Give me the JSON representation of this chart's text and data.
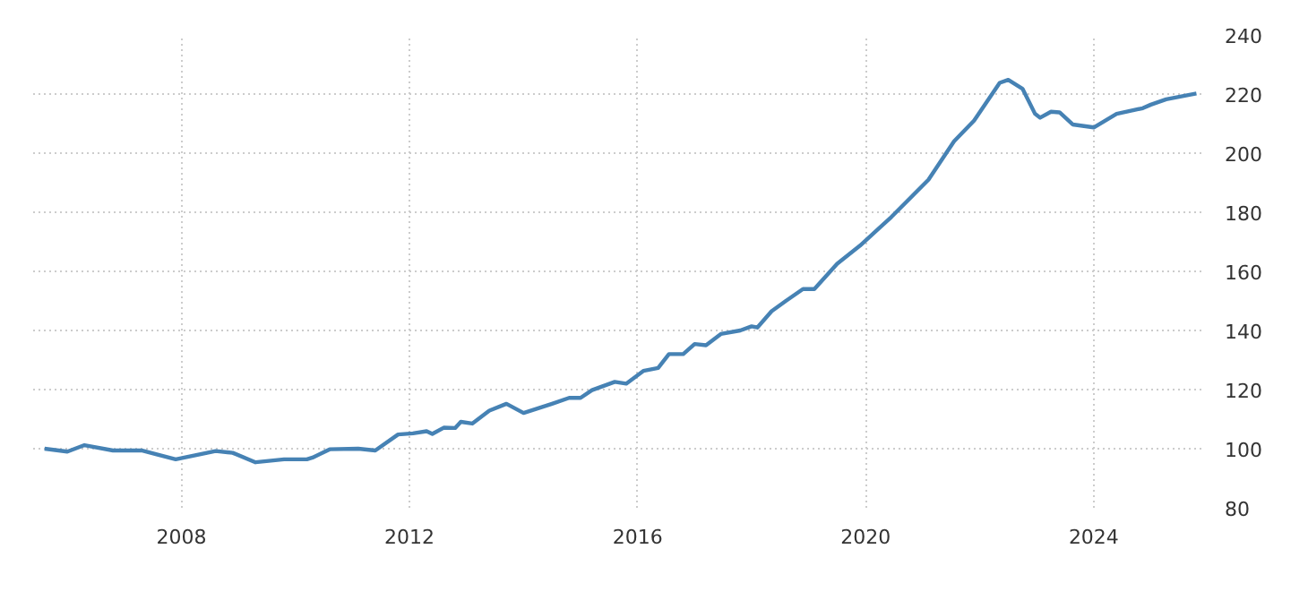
{
  "chart_data": {
    "type": "line",
    "x": [
      2005.6,
      2006.0,
      2006.3,
      2006.8,
      2007.3,
      2007.9,
      2008.6,
      2008.9,
      2009.3,
      2009.8,
      2010.2,
      2010.3,
      2010.6,
      2011.1,
      2011.4,
      2011.8,
      2012.06,
      2012.3,
      2012.4,
      2012.6,
      2012.8,
      2012.9,
      2013.1,
      2013.4,
      2013.7,
      2014.0,
      2014.5,
      2014.8,
      2015.0,
      2015.2,
      2015.6,
      2015.8,
      2016.1,
      2016.36,
      2016.55,
      2016.8,
      2017.0,
      2017.2,
      2017.46,
      2017.8,
      2018.0,
      2018.1,
      2018.35,
      2018.6,
      2018.9,
      2019.1,
      2019.5,
      2019.9,
      2020.45,
      2021.1,
      2021.55,
      2021.9,
      2022.35,
      2022.5,
      2022.75,
      2022.97,
      2023.06,
      2023.25,
      2023.4,
      2023.63,
      2024.0,
      2024.4,
      2024.86,
      2025.0,
      2025.27,
      2025.8
    ],
    "series": [
      {
        "color": "#4682b4",
        "values": [
          100,
          99,
          101.2,
          99.4,
          99.4,
          96.4,
          99.2,
          98.6,
          95.4,
          96.4,
          96.4,
          97,
          99.8,
          100,
          99.4,
          104.8,
          105.2,
          105.9,
          105,
          107.1,
          107,
          109.1,
          108.5,
          112.9,
          115.2,
          112.1,
          115.2,
          117.2,
          117.2,
          119.8,
          122.6,
          122,
          126.3,
          127.3,
          132,
          132,
          135.4,
          135,
          138.8,
          140,
          141.4,
          141,
          146.5,
          150,
          154,
          154,
          162.6,
          168.7,
          178.4,
          191,
          204,
          211,
          223.8,
          224.8,
          221.8,
          213.3,
          212,
          214,
          213.8,
          209.7,
          208.7,
          213.3,
          215.2,
          216.4,
          218.2,
          220.2
        ]
      }
    ],
    "xlim": [
      2005.4,
      2025.95
    ],
    "ylim": [
      80,
      240
    ],
    "xticks": [
      2008,
      2012,
      2016,
      2020,
      2024
    ],
    "yticks": [
      80,
      100,
      120,
      140,
      160,
      180,
      200,
      220,
      240
    ],
    "grid": true,
    "line_style": "solid",
    "marker": "none"
  }
}
